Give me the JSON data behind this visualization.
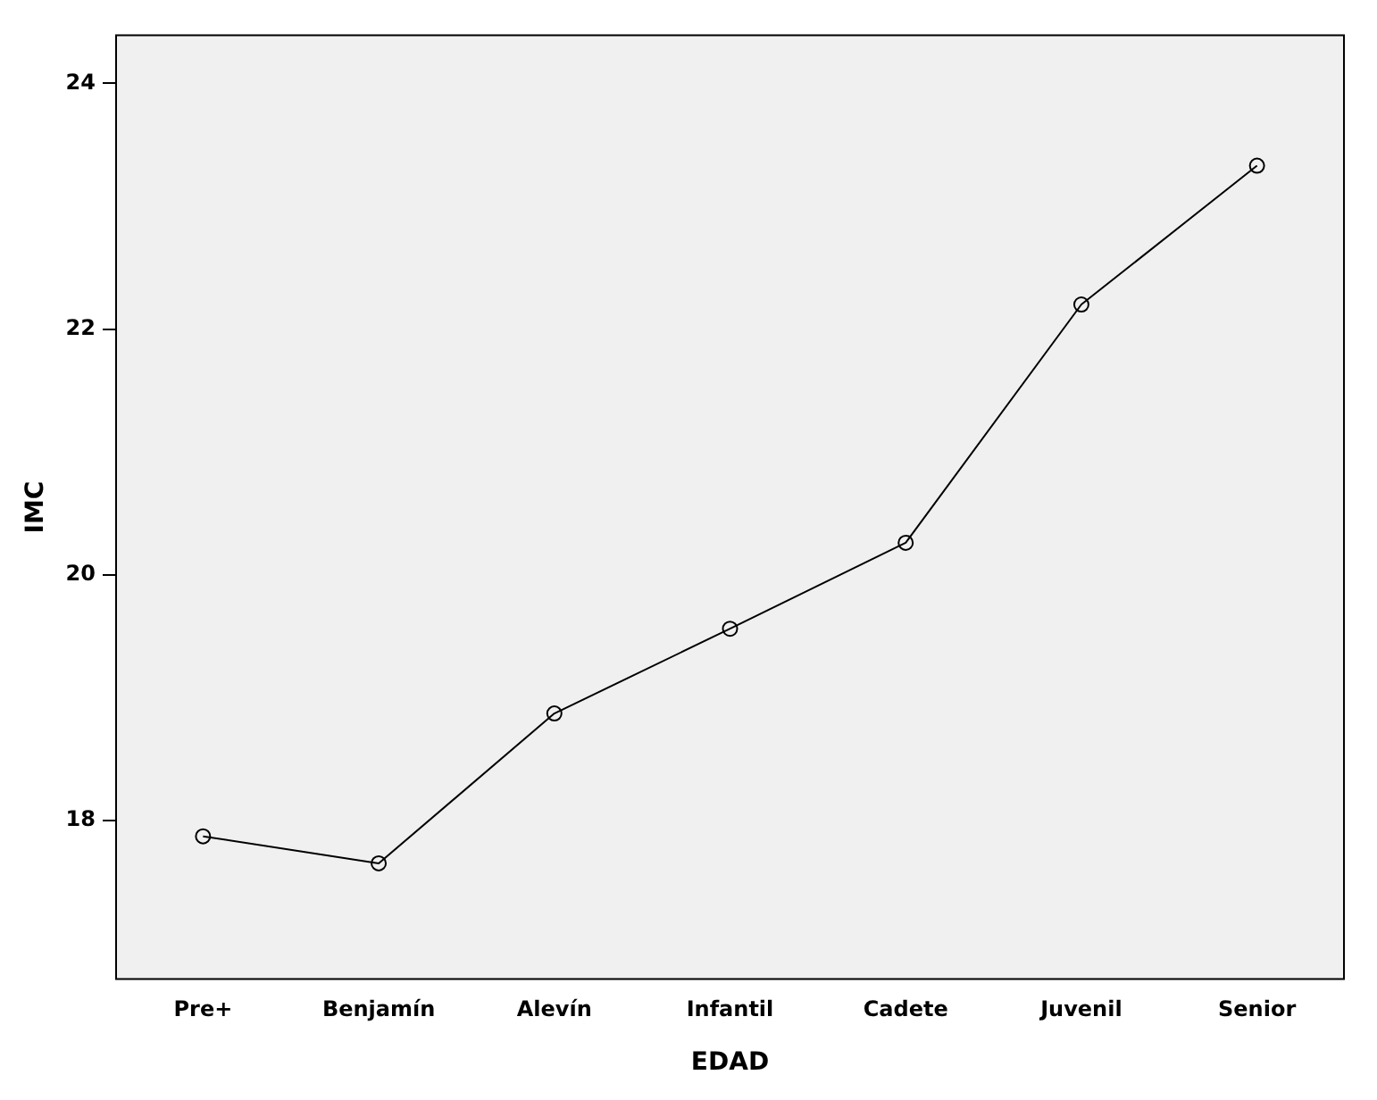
{
  "chart_data": {
    "type": "line",
    "xlabel": "EDAD",
    "ylabel": "IMC",
    "categories": [
      "Pre+",
      "Benjamín",
      "Alevín",
      "Infantil",
      "Cadete",
      "Juvenil",
      "Senior"
    ],
    "values": [
      17.87,
      17.65,
      18.87,
      19.56,
      20.26,
      22.2,
      23.33
    ],
    "color": "#000000",
    "marker": "circle",
    "line_style": "solid",
    "ylim": [
      16.7,
      24.4
    ],
    "yticks": [
      18,
      20,
      22,
      24
    ],
    "grid": false,
    "legend": false
  }
}
